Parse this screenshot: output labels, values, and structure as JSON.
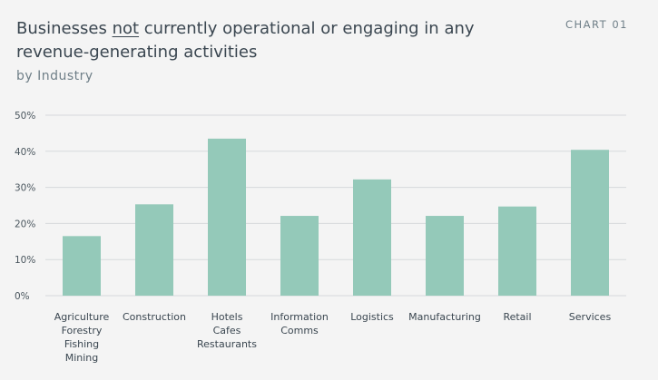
{
  "header": {
    "title_pre": "Businesses ",
    "title_emph": "not",
    "title_post": " currently operational or engaging in any revenue-generating activities",
    "subtitle": "by Industry",
    "badge": "CHART 01"
  },
  "colors": {
    "bar": "#94c9b9",
    "grid": "#d6d9db",
    "axis": "#4a565e"
  },
  "chart_data": {
    "type": "bar",
    "title": "Businesses not currently operational or engaging in any revenue-generating activities",
    "subtitle": "by Industry",
    "categories": [
      [
        "Agriculture",
        "Forestry",
        "Fishing",
        "Mining"
      ],
      [
        "Construction"
      ],
      [
        "Hotels",
        "Cafes",
        "Restaurants"
      ],
      [
        "Information",
        "Comms"
      ],
      [
        "Logistics"
      ],
      [
        "Manufacturing"
      ],
      [
        "Retail"
      ],
      [
        "Services"
      ]
    ],
    "values": [
      16.5,
      25.3,
      43.5,
      22.1,
      32.2,
      22.1,
      24.7,
      40.4
    ],
    "y_ticks": [
      "0%",
      "10%",
      "20%",
      "30%",
      "40%",
      "50%"
    ],
    "ylim": [
      0,
      50
    ],
    "xlabel": "",
    "ylabel": "",
    "grid": true,
    "legend": "none"
  }
}
